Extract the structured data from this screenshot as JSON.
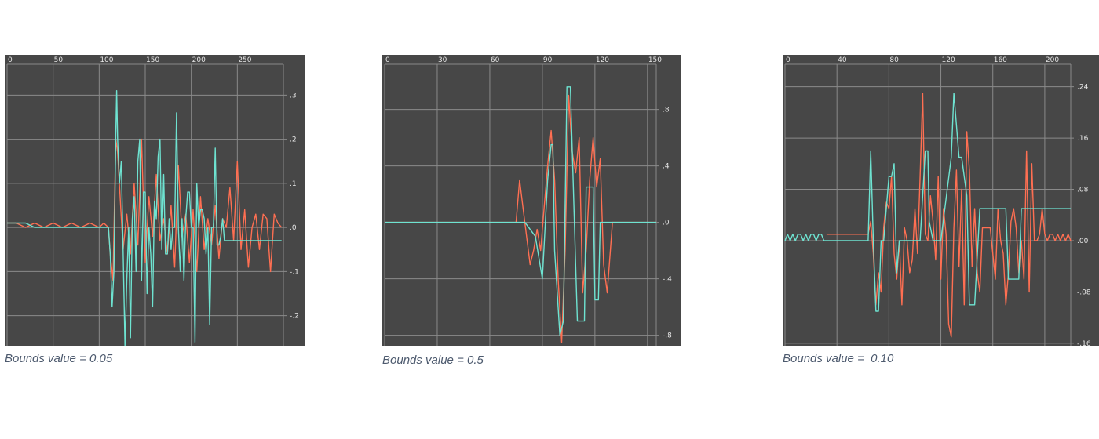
{
  "colors": {
    "background": "#474747",
    "grid": "#8a8a8a",
    "orange": "#ff6f52",
    "cyan": "#6ee3d1",
    "caption": "#4d5a6e"
  },
  "chart_data": [
    {
      "type": "line",
      "caption": "Bounds value = 0.05",
      "xlim": [
        0,
        300
      ],
      "ylim": [
        -0.27,
        0.37
      ],
      "xticks": [
        0,
        50,
        100,
        150,
        200,
        250
      ],
      "xtick_labels": [
        "0",
        "50",
        "100",
        "150",
        "200",
        "250"
      ],
      "yticks": [
        0.3,
        0.2,
        0.1,
        0.0,
        -0.1,
        -0.2
      ],
      "ytick_labels": [
        ".3",
        ".2",
        ".1",
        ".0",
        "-.1",
        "-.2"
      ],
      "series": [
        {
          "color": "orange",
          "x": [
            0,
            10,
            20,
            30,
            40,
            50,
            60,
            70,
            80,
            90,
            100,
            105,
            110,
            112,
            115,
            118,
            120,
            123,
            126,
            130,
            134,
            138,
            142,
            146,
            150,
            154,
            158,
            162,
            166,
            170,
            174,
            178,
            182,
            186,
            190,
            194,
            198,
            202,
            206,
            210,
            214,
            218,
            222,
            226,
            230,
            234,
            238,
            242,
            246,
            250,
            254,
            258,
            262,
            266,
            270,
            274,
            278,
            282,
            286,
            290,
            294,
            298
          ],
          "y": [
            0.01,
            0.01,
            0.0,
            0.01,
            0.0,
            0.01,
            0.0,
            0.01,
            0.0,
            0.01,
            0.0,
            0.01,
            0.0,
            -0.06,
            -0.12,
            0.2,
            0.17,
            0.06,
            -0.05,
            0.03,
            -0.06,
            0.1,
            -0.04,
            0.2,
            -0.08,
            0.07,
            -0.02,
            0.12,
            -0.03,
            0.02,
            -0.06,
            0.05,
            -0.09,
            0.14,
            -0.02,
            0.03,
            -0.08,
            0.04,
            -0.1,
            0.07,
            -0.05,
            0.02,
            -0.04,
            0.05,
            -0.07,
            0.02,
            0.0,
            0.09,
            -0.03,
            0.15,
            -0.05,
            0.04,
            -0.09,
            0.0,
            0.03,
            -0.05,
            0.03,
            0.02,
            -0.1,
            0.03,
            0.01,
            0.0
          ]
        },
        {
          "color": "cyan",
          "x": [
            0,
            20,
            30,
            50,
            80,
            100,
            110,
            112,
            114,
            116,
            118,
            119,
            120,
            122,
            124,
            126,
            128,
            130,
            132,
            134,
            136,
            138,
            140,
            142,
            144,
            146,
            148,
            150,
            152,
            154,
            156,
            158,
            160,
            162,
            164,
            166,
            168,
            170,
            172,
            174,
            176,
            178,
            180,
            182,
            184,
            186,
            188,
            190,
            192,
            194,
            196,
            198,
            200,
            202,
            204,
            206,
            208,
            210,
            212,
            214,
            216,
            218,
            220,
            222,
            224,
            226,
            228,
            230,
            232,
            234,
            236,
            238,
            240,
            242,
            244,
            246,
            248,
            250,
            252,
            254,
            256,
            258,
            260,
            262,
            264,
            266,
            268,
            270,
            272,
            274,
            276,
            278,
            280,
            282,
            284,
            286,
            288,
            290,
            292,
            294,
            296,
            298
          ],
          "y": [
            0.01,
            0.01,
            0.0,
            0.0,
            0.0,
            0.0,
            0.0,
            -0.06,
            -0.18,
            -0.1,
            0.21,
            0.31,
            0.2,
            0.1,
            0.15,
            -0.05,
            -0.27,
            -0.12,
            0.0,
            -0.25,
            0.02,
            0.07,
            -0.1,
            0.15,
            0.2,
            -0.12,
            0.08,
            0.08,
            -0.15,
            0.0,
            -0.06,
            -0.18,
            0.06,
            0.02,
            0.16,
            0.2,
            -0.05,
            0.12,
            -0.06,
            -0.06,
            0.02,
            -0.05,
            0.0,
            0.0,
            0.26,
            0.0,
            -0.1,
            0.02,
            -0.12,
            0.02,
            0.08,
            0.08,
            0.0,
            0.0,
            -0.26,
            0.1,
            0.0,
            0.04,
            0.04,
            0.02,
            -0.06,
            0.0,
            -0.22,
            0.0,
            0.0,
            0.18,
            -0.04,
            -0.04,
            -0.02,
            0.02,
            -0.03,
            -0.03,
            -0.03,
            -0.03,
            -0.03,
            -0.03,
            -0.03,
            -0.03,
            -0.03,
            -0.03,
            -0.03,
            -0.03,
            -0.03,
            -0.03,
            -0.03,
            -0.03,
            -0.03,
            -0.03,
            -0.03,
            -0.03,
            -0.03,
            -0.03,
            -0.03,
            -0.03,
            -0.03,
            -0.03,
            -0.03,
            -0.03,
            -0.03,
            -0.03,
            -0.03,
            -0.03
          ]
        }
      ]
    },
    {
      "type": "line",
      "caption": "Bounds value = 0.5",
      "xlim": [
        0,
        155
      ],
      "ylim": [
        -0.88,
        1.12
      ],
      "xticks": [
        0,
        30,
        60,
        90,
        120,
        150
      ],
      "xtick_labels": [
        "0",
        "30",
        "60",
        "90",
        "120",
        "150"
      ],
      "yticks": [
        0.8,
        0.4,
        0.0,
        -0.4,
        -0.8
      ],
      "ytick_labels": [
        ".8",
        ".4",
        ".0",
        "-.4",
        "-.8"
      ],
      "series": [
        {
          "color": "orange",
          "x": [
            0,
            20,
            40,
            60,
            75,
            77,
            79,
            81,
            83,
            85,
            87,
            89,
            91,
            93,
            95,
            97,
            99,
            101,
            103,
            105,
            107,
            109,
            111,
            113,
            115,
            117,
            119,
            121,
            123,
            125,
            127,
            130,
            140,
            150,
            155
          ],
          "y": [
            0.0,
            0.0,
            0.0,
            0.0,
            0.0,
            0.3,
            0.1,
            -0.1,
            -0.3,
            -0.2,
            -0.05,
            -0.2,
            0.1,
            0.4,
            0.65,
            0.3,
            -0.4,
            -0.85,
            -0.2,
            0.9,
            0.5,
            0.35,
            0.6,
            -0.5,
            -0.2,
            0.3,
            0.6,
            0.25,
            0.45,
            -0.3,
            -0.5,
            0.0,
            0.0,
            0.0,
            0.0
          ]
        },
        {
          "color": "cyan",
          "x": [
            0,
            80,
            86,
            90,
            93,
            95,
            96,
            97,
            100,
            102,
            104,
            106,
            109,
            110,
            114,
            115,
            119,
            120,
            122,
            123,
            130,
            140,
            155
          ],
          "y": [
            0.0,
            0.0,
            -0.1,
            -0.4,
            0.3,
            0.55,
            0.55,
            -0.2,
            -0.8,
            -0.7,
            0.96,
            0.96,
            -0.3,
            -0.7,
            -0.7,
            0.25,
            0.25,
            -0.55,
            -0.55,
            0.0,
            0.0,
            0.0,
            0.0
          ]
        }
      ]
    },
    {
      "type": "line",
      "caption": "Bounds value =  0.10",
      "xlim": [
        0,
        220
      ],
      "ylim": [
        -0.165,
        0.275
      ],
      "xticks": [
        0,
        40,
        80,
        120,
        160,
        200
      ],
      "xtick_labels": [
        "0",
        "40",
        "80",
        "120",
        "160",
        "200"
      ],
      "yticks": [
        0.24,
        0.16,
        0.08,
        0.0,
        -0.08,
        -0.16
      ],
      "ytick_labels": [
        ".24",
        ".16",
        ".08",
        ".00",
        "-.08",
        "-.16"
      ],
      "series": [
        {
          "color": "orange",
          "x": [
            32,
            50,
            64,
            66,
            68,
            70,
            72,
            74,
            76,
            78,
            80,
            82,
            84,
            86,
            88,
            90,
            92,
            94,
            96,
            98,
            100,
            102,
            104,
            106,
            108,
            110,
            112,
            114,
            116,
            118,
            120,
            122,
            124,
            126,
            128,
            130,
            132,
            134,
            136,
            138,
            140,
            142,
            144,
            146,
            148,
            150,
            152,
            154,
            156,
            158,
            160,
            162,
            164,
            166,
            168,
            170,
            172,
            174,
            176,
            178,
            180,
            182,
            184,
            186,
            188,
            190,
            192,
            194,
            196,
            198,
            200,
            202,
            204,
            206,
            208,
            210,
            212,
            214,
            216,
            218,
            220
          ],
          "y": [
            0.01,
            0.01,
            0.01,
            0.03,
            -0.02,
            -0.1,
            -0.05,
            -0.08,
            0.02,
            0.06,
            0.05,
            0.1,
            -0.02,
            -0.06,
            0.0,
            -0.1,
            0.02,
            0.0,
            -0.05,
            -0.03,
            0.05,
            -0.02,
            0.1,
            0.23,
            0.01,
            0.0,
            0.07,
            0.03,
            -0.03,
            0.1,
            -0.06,
            0.05,
            0.01,
            -0.13,
            -0.15,
            0.02,
            0.11,
            -0.04,
            0.08,
            -0.1,
            0.17,
            0.11,
            -0.04,
            0.05,
            -0.05,
            -0.08,
            0.02,
            0.02,
            0.02,
            0.02,
            -0.02,
            -0.06,
            0.05,
            0.0,
            -0.02,
            -0.1,
            -0.05,
            0.03,
            0.05,
            0.02,
            -0.05,
            0.0,
            -0.06,
            0.14,
            -0.08,
            0.12,
            0.0,
            0.0,
            0.01,
            0.05,
            0.01,
            0.0,
            0.01,
            0.01,
            0.0,
            0.01,
            0.0,
            0.01,
            0.0,
            0.01,
            0.0
          ]
        },
        {
          "color": "cyan",
          "x": [
            0,
            2,
            4,
            6,
            8,
            10,
            12,
            14,
            16,
            18,
            20,
            22,
            24,
            26,
            28,
            30,
            34,
            50,
            64,
            66,
            68,
            70,
            72,
            74,
            76,
            80,
            82,
            84,
            86,
            88,
            90,
            94,
            96,
            98,
            100,
            104,
            108,
            110,
            111,
            114,
            118,
            120,
            128,
            130,
            134,
            136,
            140,
            142,
            146,
            150,
            152,
            156,
            158,
            164,
            170,
            172,
            176,
            180,
            182,
            186,
            190,
            194,
            198,
            206,
            210,
            220
          ],
          "y": [
            0.0,
            0.01,
            0.0,
            0.01,
            0.0,
            0.01,
            0.01,
            0.0,
            0.01,
            0.0,
            0.01,
            0.01,
            0.0,
            0.01,
            0.01,
            0.0,
            0.0,
            0.0,
            0.0,
            0.14,
            0.0,
            -0.11,
            -0.11,
            0.0,
            0.0,
            0.1,
            0.1,
            0.12,
            -0.05,
            0.0,
            0.0,
            0.0,
            0.0,
            0.0,
            0.0,
            0.0,
            0.14,
            0.14,
            0.03,
            0.0,
            0.0,
            0.0,
            0.13,
            0.23,
            0.13,
            0.13,
            0.07,
            -0.1,
            -0.1,
            0.05,
            0.05,
            0.05,
            0.05,
            0.05,
            0.05,
            -0.06,
            -0.06,
            -0.06,
            0.05,
            0.05,
            0.05,
            0.05,
            0.05,
            0.05,
            0.05,
            0.05
          ]
        }
      ]
    }
  ]
}
